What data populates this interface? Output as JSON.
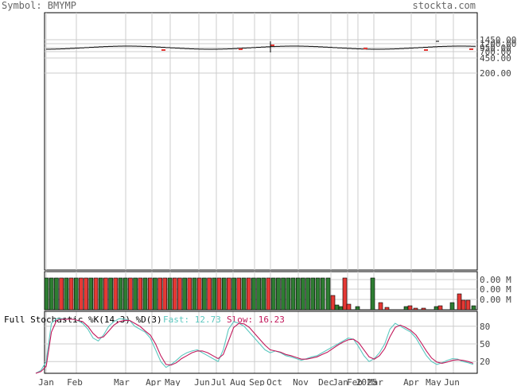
{
  "header": {
    "symbol": "Symbol: BMYMP",
    "site": "stockta.com"
  },
  "colors": {
    "up": "#2e7d32",
    "down": "#e53935",
    "fast": "#5cc8c0",
    "slow": "#c2185b",
    "grid": "#cccccc",
    "frame": "#000000"
  },
  "chart_data": [
    {
      "type": "bar",
      "title": "",
      "y_ticks": [
        "1450.00",
        "1200.00",
        "950.00",
        "700.00",
        "450.00",
        "200.00"
      ],
      "x_tick_labels": [
        "Jan",
        "Feb",
        "Mar",
        "Apr",
        "May",
        "Jun",
        "Jul",
        "Aug",
        "Sep",
        "Oct",
        "Nov",
        "Dec",
        "Jan",
        "Feb",
        "2025",
        "Mar",
        "Apr",
        "May",
        "Jun"
      ]
    },
    {
      "type": "bar",
      "title": "",
      "y_ticks": [
        "0.00 M",
        "0.00 M",
        "0.00 M"
      ],
      "note": "volume bars; early bars are full-height with alternating colors"
    },
    {
      "type": "line",
      "title": "Full Stochastic %K(14,3) %D(3)",
      "fast_label": "Fast: 12.73",
      "slow_label": "Slow: 16.23",
      "y_ticks": [
        "80",
        "50",
        "20"
      ],
      "ylim": [
        0,
        100
      ],
      "series": [
        {
          "name": "Fast",
          "values": [
            0,
            5,
            20,
            85,
            93,
            93,
            92,
            92,
            90,
            85,
            75,
            60,
            55,
            65,
            80,
            88,
            93,
            92,
            90,
            80,
            75,
            70,
            60,
            40,
            20,
            10,
            15,
            22,
            30,
            35,
            38,
            40,
            35,
            30,
            25,
            20,
            40,
            75,
            88,
            85,
            80,
            70,
            60,
            50,
            40,
            35,
            38,
            35,
            30,
            28,
            25,
            22,
            25,
            28,
            30,
            35,
            40,
            45,
            50,
            55,
            60,
            58,
            45,
            30,
            20,
            25,
            35,
            50,
            75,
            85,
            80,
            75,
            70,
            60,
            45,
            30,
            20,
            15,
            18,
            22,
            25,
            24,
            20,
            18,
            15
          ]
        },
        {
          "name": "Slow",
          "values": [
            0,
            3,
            12,
            70,
            90,
            92,
            92,
            92,
            90,
            88,
            80,
            68,
            60,
            62,
            72,
            82,
            88,
            90,
            90,
            85,
            80,
            72,
            65,
            50,
            30,
            15,
            14,
            18,
            25,
            30,
            35,
            38,
            38,
            35,
            30,
            25,
            32,
            55,
            78,
            85,
            84,
            78,
            68,
            58,
            48,
            40,
            38,
            36,
            32,
            30,
            27,
            24,
            24,
            26,
            28,
            32,
            36,
            42,
            48,
            53,
            57,
            58,
            52,
            40,
            28,
            24,
            30,
            42,
            62,
            78,
            82,
            78,
            73,
            65,
            52,
            38,
            26,
            19,
            17,
            19,
            22,
            23,
            22,
            20,
            17
          ]
        }
      ]
    }
  ]
}
